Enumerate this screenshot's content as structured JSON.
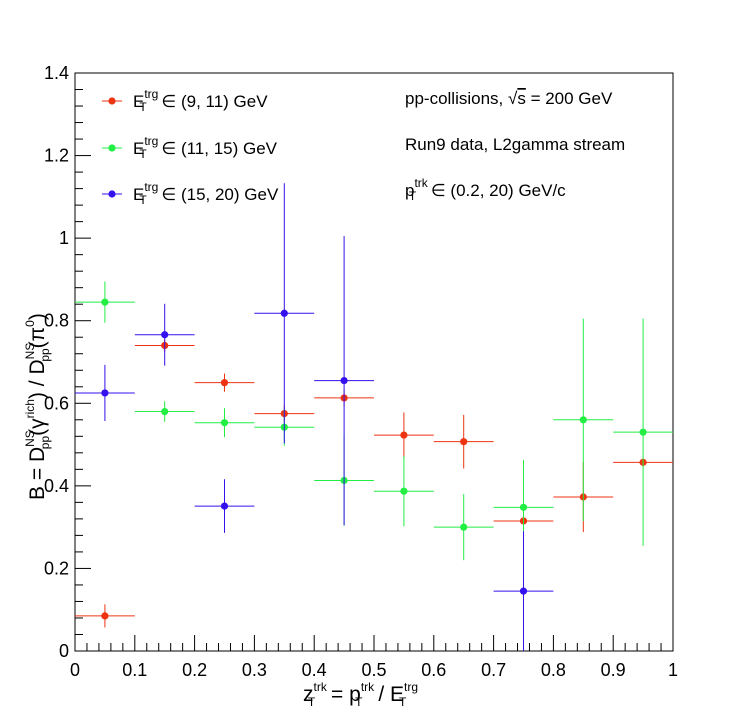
{
  "chart_data": {
    "type": "scatter",
    "xlim": [
      0,
      1
    ],
    "ylim": [
      0,
      1.4
    ],
    "x_ticks": [
      "0",
      "0.1",
      "0.2",
      "0.3",
      "0.4",
      "0.5",
      "0.6",
      "0.7",
      "0.8",
      "0.9",
      "1"
    ],
    "y_ticks": [
      "0",
      "0.2",
      "0.4",
      "0.6",
      "0.8",
      "1",
      "1.2",
      "1.4"
    ],
    "xlabel": {
      "lhs_base": "z",
      "lhs_sup": "trk",
      "lhs_sub": "T",
      "eq": " = ",
      "num_base": "p",
      "num_sup": "trk",
      "num_sub": "T",
      "slash": " / ",
      "den_base": "E",
      "den_sup": "trg",
      "den_sub": "T"
    },
    "ylabel": {
      "prefix": "B = D",
      "sup1": "NS",
      "sub1": "pp",
      "arg1": "(γ",
      "argsup1": "rich",
      "close1": ") / D",
      "sup2": "NS",
      "sub2": "pp",
      "arg2": "(π",
      "argsup2": "0",
      "close2": ")"
    },
    "grid": false,
    "legend_position": "top-left",
    "series": [
      {
        "label_base": "E",
        "label_sup": "trg",
        "label_sub": "T",
        "label_rest": " ∈ (9, 11) GeV",
        "color": "#ee3311",
        "points": [
          {
            "x": 0.05,
            "y": 0.085,
            "xerr": 0.05,
            "yerr": 0.028
          },
          {
            "x": 0.15,
            "y": 0.74,
            "xerr": 0.05,
            "yerr": 0.015
          },
          {
            "x": 0.25,
            "y": 0.65,
            "xerr": 0.05,
            "yerr": 0.022
          },
          {
            "x": 0.35,
            "y": 0.575,
            "xerr": 0.05,
            "yerr": 0.02
          },
          {
            "x": 0.45,
            "y": 0.613,
            "xerr": 0.05,
            "yerr": 0.02
          },
          {
            "x": 0.55,
            "y": 0.523,
            "xerr": 0.05,
            "yerr": 0.055
          },
          {
            "x": 0.65,
            "y": 0.507,
            "xerr": 0.05,
            "yerr": 0.065
          },
          {
            "x": 0.75,
            "y": 0.315,
            "xerr": 0.05,
            "yerr": 0.025
          },
          {
            "x": 0.85,
            "y": 0.373,
            "xerr": 0.05,
            "yerr": 0.085
          },
          {
            "x": 0.95,
            "y": 0.457,
            "xerr": 0.05,
            "yerr": 0.012
          }
        ]
      },
      {
        "label_base": "E",
        "label_sup": "trg",
        "label_sub": "T",
        "label_rest": " ∈ (11, 15) GeV",
        "color": "#22ee44",
        "points": [
          {
            "x": 0.05,
            "y": 0.845,
            "xerr": 0.05,
            "yerr": 0.05
          },
          {
            "x": 0.15,
            "y": 0.58,
            "xerr": 0.05,
            "yerr": 0.025
          },
          {
            "x": 0.25,
            "y": 0.553,
            "xerr": 0.05,
            "yerr": 0.035
          },
          {
            "x": 0.35,
            "y": 0.542,
            "xerr": 0.05,
            "yerr": 0.045
          },
          {
            "x": 0.45,
            "y": 0.413,
            "xerr": 0.05,
            "yerr": 0.11
          },
          {
            "x": 0.55,
            "y": 0.387,
            "xerr": 0.05,
            "yerr": 0.085
          },
          {
            "x": 0.65,
            "y": 0.3,
            "xerr": 0.05,
            "yerr": 0.08
          },
          {
            "x": 0.75,
            "y": 0.348,
            "xerr": 0.05,
            "yerr": 0.115
          },
          {
            "x": 0.85,
            "y": 0.56,
            "xerr": 0.05,
            "yerr": 0.245
          },
          {
            "x": 0.95,
            "y": 0.53,
            "xerr": 0.05,
            "yerr": 0.275
          }
        ]
      },
      {
        "label_base": "E",
        "label_sup": "trg",
        "label_sub": "T",
        "label_rest": " ∈ (15, 20) GeV",
        "color": "#3311ee",
        "points": [
          {
            "x": 0.05,
            "y": 0.625,
            "xerr": 0.05,
            "yerr": 0.068
          },
          {
            "x": 0.15,
            "y": 0.766,
            "xerr": 0.05,
            "yerr": 0.075
          },
          {
            "x": 0.25,
            "y": 0.351,
            "xerr": 0.05,
            "yerr": 0.065
          },
          {
            "x": 0.35,
            "y": 0.818,
            "xerr": 0.05,
            "yerr": 0.315
          },
          {
            "x": 0.45,
            "y": 0.655,
            "xerr": 0.05,
            "yerr": 0.35
          },
          {
            "x": 0.75,
            "y": 0.145,
            "xerr": 0.05,
            "yerr": 0.145
          }
        ]
      }
    ],
    "annotations": [
      {
        "lines": [
          "pp-collisions, ",
          "√",
          "s",
          " = 200 GeV"
        ]
      },
      {
        "text": "Run9 data, L2gamma stream"
      },
      {
        "base": "p",
        "sup": "trk",
        "sub": "T",
        "rest": " ∈ (0.2, 20) GeV/c"
      }
    ]
  }
}
